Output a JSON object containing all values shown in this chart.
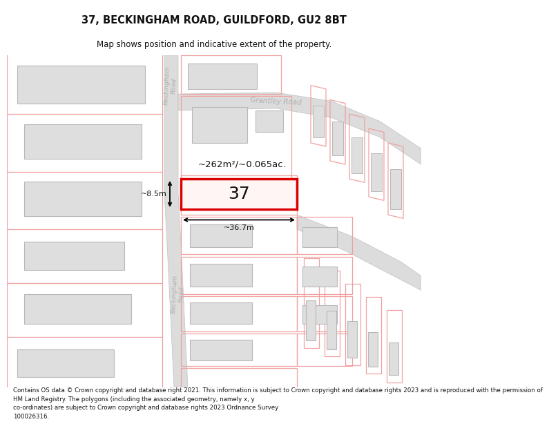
{
  "title_line1": "37, BECKINGHAM ROAD, GUILDFORD, GU2 8BT",
  "title_line2": "Map shows position and indicative extent of the property.",
  "footer_text": "Contains OS data © Crown copyright and database right 2021. This information is subject to Crown copyright and database rights 2023 and is reproduced with the permission of\nHM Land Registry. The polygons (including the associated geometry, namely x, y\nco-ordinates) are subject to Crown copyright and database rights 2023 Ordnance Survey\n100026316.",
  "area_label": "~262m²/~0.065ac.",
  "width_label": "~36.7m",
  "height_label": "~8.5m",
  "number_label": "37",
  "bg_color": "#ffffff",
  "road_fill": "#dcdcdc",
  "road_edge": "#c0c0c0",
  "plot_red": "#dd0000",
  "bld_fill": "#dedede",
  "bld_edge": "#b8b8b8",
  "pink": "#f0a0a0",
  "road_text": "#b0b0b0",
  "dark_text": "#111111",
  "title_fs": 10.5,
  "sub_fs": 8.5,
  "footer_fs": 6.2
}
